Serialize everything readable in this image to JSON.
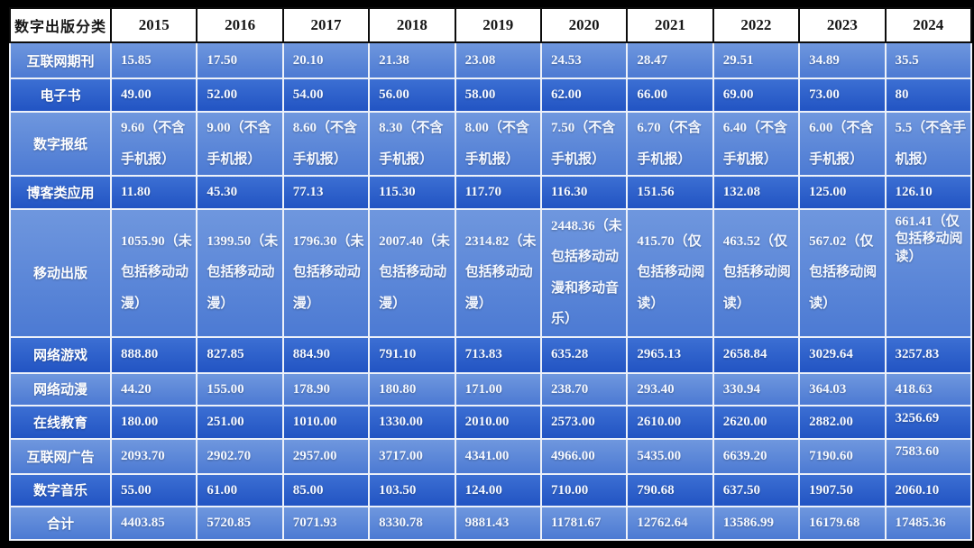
{
  "table": {
    "corner_label": "数字出版分类",
    "years": [
      "2015",
      "2016",
      "2017",
      "2018",
      "2019",
      "2020",
      "2021",
      "2022",
      "2023",
      "2024"
    ],
    "rows": [
      {
        "label": "互联网期刊",
        "values": [
          "15.85",
          "17.50",
          "20.10",
          "21.38",
          "23.08",
          "24.53",
          "28.47",
          "29.51",
          "34.89",
          "35.5"
        ]
      },
      {
        "label": "电子书",
        "values": [
          "49.00",
          "52.00",
          "54.00",
          "56.00",
          "58.00",
          "62.00",
          "66.00",
          "69.00",
          "73.00",
          "80"
        ]
      },
      {
        "label": "数字报纸",
        "values": [
          "9.60（不含手机报）",
          "9.00（不含手机报）",
          "8.60（不含手机报）",
          "8.30（不含手机报）",
          "8.00（不含手机报）",
          "7.50（不含手机报）",
          "6.70（不含手机报）",
          "6.40（不含手机报）",
          "6.00（不含手机报）",
          "5.5（不含手机报）"
        ]
      },
      {
        "label": "博客类应用",
        "values": [
          "11.80",
          "45.30",
          "77.13",
          "115.30",
          "117.70",
          "116.30",
          "151.56",
          "132.08",
          "125.00",
          "126.10"
        ]
      },
      {
        "label": "移动出版",
        "values": [
          "1055.90（未包括移动动漫）",
          "1399.50（未包括移动动漫）",
          "1796.30（未包括移动动漫）",
          "2007.40（未包括移动动漫）",
          "2314.82（未包括移动动漫）",
          "2448.36（未包括移动动漫和移动音乐）",
          "415.70（仅包括移动阅读）",
          "463.52（仅包括移动阅读）",
          "567.02（仅包括移动阅读）",
          "661.41（仅包括移动阅读）"
        ]
      },
      {
        "label": "网络游戏",
        "values": [
          "888.80",
          "827.85",
          "884.90",
          "791.10",
          "713.83",
          "635.28",
          "2965.13",
          "2658.84",
          "3029.64",
          "3257.83"
        ]
      },
      {
        "label": "网络动漫",
        "values": [
          "44.20",
          "155.00",
          "178.90",
          "180.80",
          "171.00",
          "238.70",
          "293.40",
          "330.94",
          "364.03",
          "418.63"
        ]
      },
      {
        "label": "在线教育",
        "values": [
          "180.00",
          "251.00",
          "1010.00",
          "1330.00",
          "2010.00",
          "2573.00",
          "2610.00",
          "2620.00",
          "2882.00",
          "3256.69"
        ]
      },
      {
        "label": "互联网广告",
        "values": [
          "2093.70",
          "2902.70",
          "2957.00",
          "3717.00",
          "4341.00",
          "4966.00",
          "5435.00",
          "6639.20",
          "7190.60",
          "7583.60"
        ]
      },
      {
        "label": "数字音乐",
        "values": [
          "55.00",
          "61.00",
          "85.00",
          "103.50",
          "124.00",
          "710.00",
          "790.68",
          "637.50",
          "1907.50",
          "2060.10"
        ]
      },
      {
        "label": "合计",
        "values": [
          "4403.85",
          "5720.85",
          "7071.93",
          "8330.78",
          "9881.43",
          "11781.67",
          "12762.64",
          "13586.99",
          "16179.68",
          "17485.36"
        ]
      }
    ],
    "top_aligned_tight_cells": [
      [
        4,
        9
      ],
      [
        7,
        9
      ],
      [
        8,
        9
      ]
    ],
    "colors": {
      "row_light": "#5b85d8",
      "row_dark": "#2a5ec8",
      "header_bg": "#ffffff",
      "header_text": "#161616",
      "value_text": "#f4f8ff",
      "grid_line": "#edf1f9",
      "outer_frame": "#000000"
    }
  }
}
